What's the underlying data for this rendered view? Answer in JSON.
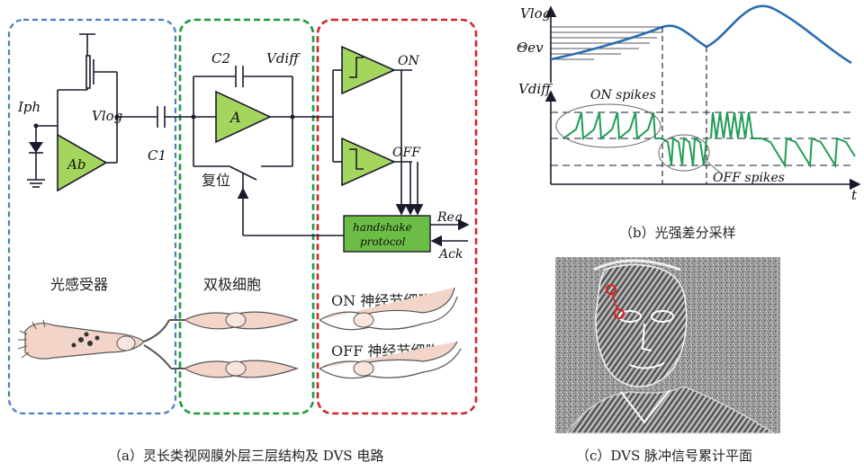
{
  "panel_a": {
    "caption": "（a）灵长类视网膜外层三层结构及 DVS 电路",
    "regions": {
      "photoreceptor": "光感受器",
      "bipolar": "双极细胞",
      "on_ganglion": "ON 神经节细胞",
      "off_ganglion": "OFF 神经节细胞"
    },
    "circuit": {
      "iph": "Iph",
      "vlog": "Vlog",
      "ab": "Ab",
      "c1": "C1",
      "c2": "C2",
      "vdiff": "Vdiff",
      "amp": "A",
      "reset": "复位",
      "on": "ON",
      "off": "OFF",
      "handshake_line1": "handshake",
      "handshake_line2": "protocol",
      "req": "Req",
      "ack": "Ack"
    }
  },
  "panel_b": {
    "caption": "（b）光强差分采样",
    "vlog_axis": "Vlog",
    "theta_label": "Θev",
    "vdiff_axis": "Vdiff",
    "t_axis": "t",
    "on_spikes": "ON spikes",
    "off_spikes": "OFF spikes"
  },
  "panel_c": {
    "caption": "（c）DVS 脉冲信号累计平面"
  },
  "colors": {
    "photoreceptor_box": "#4a7cc0",
    "bipolar_box": "#1c9c3c",
    "ganglion_box": "#d0282a",
    "amplifier_fill": "#a4d65e",
    "handshake_fill": "#6bbd45",
    "vlog_curve": "#2a6db0",
    "spike_green": "#1f9d55",
    "cell_fill": "#f2d4c8"
  }
}
